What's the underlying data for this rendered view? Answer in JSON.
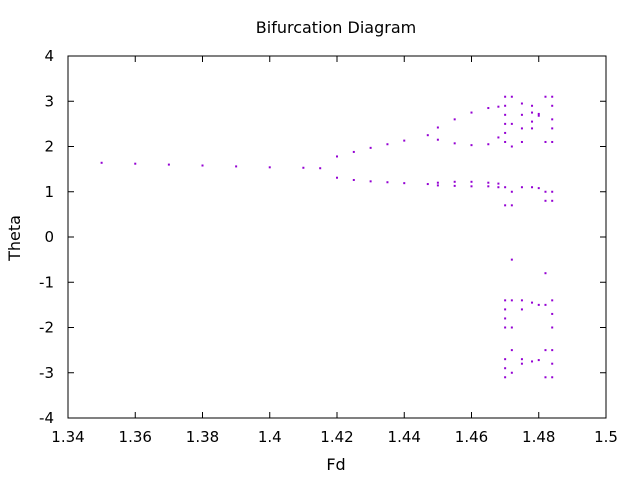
{
  "chart_data": {
    "type": "scatter",
    "title": "Bifurcation Diagram",
    "xlabel": "Fd",
    "ylabel": "Theta",
    "xlim": [
      1.34,
      1.5
    ],
    "ylim": [
      -4,
      4
    ],
    "x_ticks": [
      "1.34",
      "1.36",
      "1.38",
      "1.4",
      "1.42",
      "1.44",
      "1.46",
      "1.48",
      "1.5"
    ],
    "y_ticks": [
      "-4",
      "-3",
      "-2",
      "-1",
      "0",
      "1",
      "2",
      "3",
      "4"
    ],
    "grid": false,
    "legend": "none",
    "point_color": "#9400d3",
    "series": [
      {
        "points": [
          [
            1.35,
            1.64
          ],
          [
            1.36,
            1.62
          ],
          [
            1.37,
            1.6
          ],
          [
            1.38,
            1.58
          ],
          [
            1.39,
            1.56
          ],
          [
            1.4,
            1.54
          ],
          [
            1.41,
            1.53
          ],
          [
            1.415,
            1.52
          ],
          [
            1.42,
            1.78
          ],
          [
            1.425,
            1.88
          ],
          [
            1.43,
            1.97
          ],
          [
            1.435,
            2.05
          ],
          [
            1.44,
            2.13
          ],
          [
            1.447,
            2.25
          ],
          [
            1.42,
            1.31
          ],
          [
            1.425,
            1.26
          ],
          [
            1.43,
            1.23
          ],
          [
            1.435,
            1.21
          ],
          [
            1.44,
            1.19
          ],
          [
            1.447,
            1.17
          ],
          [
            1.45,
            2.42
          ],
          [
            1.455,
            2.6
          ],
          [
            1.46,
            2.75
          ],
          [
            1.465,
            2.85
          ],
          [
            1.468,
            2.88
          ],
          [
            1.45,
            2.15
          ],
          [
            1.455,
            2.07
          ],
          [
            1.46,
            2.03
          ],
          [
            1.465,
            2.05
          ],
          [
            1.468,
            2.2
          ],
          [
            1.45,
            1.2
          ],
          [
            1.455,
            1.22
          ],
          [
            1.46,
            1.22
          ],
          [
            1.465,
            1.2
          ],
          [
            1.468,
            1.18
          ],
          [
            1.45,
            1.14
          ],
          [
            1.455,
            1.13
          ],
          [
            1.46,
            1.12
          ],
          [
            1.465,
            1.12
          ],
          [
            1.468,
            1.1
          ],
          [
            1.47,
            3.1
          ],
          [
            1.47,
            2.9
          ],
          [
            1.47,
            2.7
          ],
          [
            1.47,
            2.5
          ],
          [
            1.47,
            2.3
          ],
          [
            1.47,
            2.1
          ],
          [
            1.47,
            1.1
          ],
          [
            1.47,
            0.7
          ],
          [
            1.47,
            -1.4
          ],
          [
            1.47,
            -1.6
          ],
          [
            1.47,
            -1.8
          ],
          [
            1.47,
            -2.0
          ],
          [
            1.47,
            -2.7
          ],
          [
            1.47,
            -2.9
          ],
          [
            1.47,
            -3.1
          ],
          [
            1.472,
            3.1
          ],
          [
            1.472,
            2.5
          ],
          [
            1.472,
            2.0
          ],
          [
            1.472,
            1.0
          ],
          [
            1.472,
            0.7
          ],
          [
            1.472,
            -0.5
          ],
          [
            1.472,
            -1.4
          ],
          [
            1.472,
            -2.0
          ],
          [
            1.472,
            -2.5
          ],
          [
            1.472,
            -3.0
          ],
          [
            1.475,
            2.95
          ],
          [
            1.475,
            2.7
          ],
          [
            1.475,
            2.4
          ],
          [
            1.475,
            2.1
          ],
          [
            1.475,
            1.1
          ],
          [
            1.475,
            -1.4
          ],
          [
            1.475,
            -1.6
          ],
          [
            1.475,
            -2.7
          ],
          [
            1.475,
            -2.8
          ],
          [
            1.478,
            2.9
          ],
          [
            1.478,
            2.75
          ],
          [
            1.478,
            2.55
          ],
          [
            1.478,
            2.4
          ],
          [
            1.478,
            1.1
          ],
          [
            1.478,
            -1.45
          ],
          [
            1.478,
            -2.75
          ],
          [
            1.48,
            2.72
          ],
          [
            1.48,
            2.68
          ],
          [
            1.48,
            1.08
          ],
          [
            1.48,
            -1.5
          ],
          [
            1.48,
            -2.72
          ],
          [
            1.482,
            3.1
          ],
          [
            1.482,
            2.1
          ],
          [
            1.482,
            1.0
          ],
          [
            1.482,
            0.8
          ],
          [
            1.482,
            -0.8
          ],
          [
            1.482,
            -1.5
          ],
          [
            1.482,
            -2.5
          ],
          [
            1.482,
            -3.1
          ],
          [
            1.484,
            3.1
          ],
          [
            1.484,
            2.9
          ],
          [
            1.484,
            2.6
          ],
          [
            1.484,
            2.4
          ],
          [
            1.484,
            2.1
          ],
          [
            1.484,
            1.0
          ],
          [
            1.484,
            0.8
          ],
          [
            1.484,
            -1.4
          ],
          [
            1.484,
            -1.7
          ],
          [
            1.484,
            -2.0
          ],
          [
            1.484,
            -2.5
          ],
          [
            1.484,
            -2.8
          ],
          [
            1.484,
            -3.1
          ]
        ]
      }
    ]
  }
}
